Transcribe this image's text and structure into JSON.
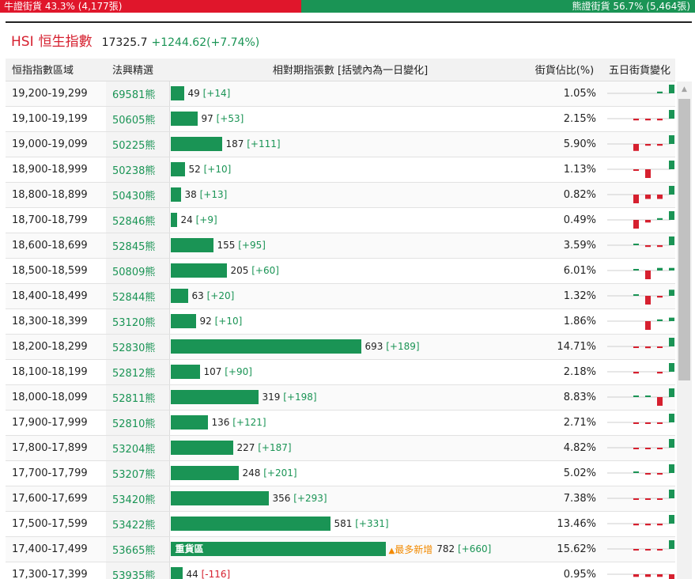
{
  "ratio": {
    "bull_label": "牛證街貨 43.3% (4,177張)",
    "bear_label": "熊證街貨 56.7% (5,464張)",
    "bull_fraction": 0.433,
    "bull_color": "#e0162b",
    "bear_color": "#1a9455"
  },
  "index": {
    "code": "HSI",
    "name": "恒生指數",
    "price": "17325.7",
    "change": "+1244.62(+7.74%)"
  },
  "table": {
    "headers": {
      "range": "恒指指數區域",
      "warrant": "法興精選",
      "bars": "相對期指張數 [括號內為一日變化]",
      "pct": "街貨佔比(%)",
      "spark": "五日街貨變化"
    },
    "max_contracts": 782,
    "rows": [
      {
        "range": "19,200-19,299",
        "warrant": "69581熊",
        "contracts": 49,
        "change": "[+14]",
        "pct": "1.05%",
        "five_day": [
          0,
          0,
          0,
          0.2,
          1
        ]
      },
      {
        "range": "19,100-19,199",
        "warrant": "50605熊",
        "contracts": 97,
        "change": "[+53]",
        "pct": "2.15%",
        "five_day": [
          0,
          -0.2,
          -0.2,
          -0.2,
          1
        ]
      },
      {
        "range": "19,000-19,099",
        "warrant": "50225熊",
        "contracts": 187,
        "change": "[+111]",
        "pct": "5.90%",
        "five_day": [
          0,
          -0.8,
          -0.2,
          -0.2,
          1
        ]
      },
      {
        "range": "18,900-18,999",
        "warrant": "50238熊",
        "contracts": 52,
        "change": "[+10]",
        "pct": "1.13%",
        "five_day": [
          0,
          -0.1,
          -1,
          0,
          1
        ]
      },
      {
        "range": "18,800-18,899",
        "warrant": "50430熊",
        "contracts": 38,
        "change": "[+13]",
        "pct": "0.82%",
        "five_day": [
          0,
          -1,
          -0.5,
          -0.5,
          1
        ]
      },
      {
        "range": "18,700-18,799",
        "warrant": "52846熊",
        "contracts": 24,
        "change": "[+9]",
        "pct": "0.49%",
        "five_day": [
          0,
          -1,
          -0.3,
          0.2,
          1
        ]
      },
      {
        "range": "18,600-18,699",
        "warrant": "52845熊",
        "contracts": 155,
        "change": "[+95]",
        "pct": "3.59%",
        "five_day": [
          0,
          0.1,
          -0.2,
          -0.2,
          1
        ]
      },
      {
        "range": "18,500-18,599",
        "warrant": "50809熊",
        "contracts": 205,
        "change": "[+60]",
        "pct": "6.01%",
        "five_day": [
          0,
          0.1,
          -1,
          0.3,
          0.3
        ]
      },
      {
        "range": "18,400-18,499",
        "warrant": "52844熊",
        "contracts": 63,
        "change": "[+20]",
        "pct": "1.32%",
        "five_day": [
          0,
          0.1,
          -1,
          -0.2,
          0.7
        ]
      },
      {
        "range": "18,300-18,399",
        "warrant": "53120熊",
        "contracts": 92,
        "change": "[+10]",
        "pct": "1.86%",
        "five_day": [
          0,
          0,
          -1,
          0.2,
          0.4
        ]
      },
      {
        "range": "18,200-18,299",
        "warrant": "52830熊",
        "contracts": 693,
        "change": "[+189]",
        "pct": "14.71%",
        "five_day": [
          0,
          -0.1,
          -0.2,
          -0.1,
          1
        ]
      },
      {
        "range": "18,100-18,199",
        "warrant": "52812熊",
        "contracts": 107,
        "change": "[+90]",
        "pct": "2.18%",
        "five_day": [
          0,
          -0.2,
          0,
          -0.2,
          1
        ]
      },
      {
        "range": "18,000-18,099",
        "warrant": "52811熊",
        "contracts": 319,
        "change": "[+198]",
        "pct": "8.83%",
        "five_day": [
          0,
          0.1,
          0.1,
          -1,
          1
        ]
      },
      {
        "range": "17,900-17,999",
        "warrant": "52810熊",
        "contracts": 136,
        "change": "[+121]",
        "pct": "2.71%",
        "five_day": [
          0,
          -0.1,
          -0.1,
          -0.1,
          1
        ]
      },
      {
        "range": "17,800-17,899",
        "warrant": "53204熊",
        "contracts": 227,
        "change": "[+187]",
        "pct": "4.82%",
        "five_day": [
          0,
          -0.1,
          -0.1,
          -0.1,
          1
        ]
      },
      {
        "range": "17,700-17,799",
        "warrant": "53207熊",
        "contracts": 248,
        "change": "[+201]",
        "pct": "5.02%",
        "five_day": [
          0,
          0.1,
          -0.1,
          -0.1,
          1
        ]
      },
      {
        "range": "17,600-17,699",
        "warrant": "53420熊",
        "contracts": 356,
        "change": "[+293]",
        "pct": "7.38%",
        "five_day": [
          0,
          -0.1,
          -0.1,
          -0.1,
          1
        ]
      },
      {
        "range": "17,500-17,599",
        "warrant": "53422熊",
        "contracts": 581,
        "change": "[+331]",
        "pct": "13.46%",
        "five_day": [
          0,
          -0.2,
          -0.2,
          -0.2,
          1
        ]
      },
      {
        "range": "17,400-17,499",
        "warrant": "53665熊",
        "contracts": 782,
        "change": "[+660]",
        "pct": "15.62%",
        "five_day": [
          0,
          -0.1,
          -0.1,
          -0.1,
          1
        ],
        "zone_label": "重貨區",
        "hot_label": "最多新增"
      },
      {
        "range": "17,300-17,399",
        "warrant": "53935熊",
        "contracts": 44,
        "change": "[-116]",
        "pct": "0.95%",
        "five_day": [
          0,
          -0.3,
          -0.3,
          -0.3,
          -1
        ]
      }
    ]
  },
  "colors": {
    "bull_red": "#d6202f",
    "bear_green": "#1a9455",
    "hot_orange": "#f28a00"
  },
  "icons": {
    "scroll_up": "triangle-up-icon",
    "hot_marker": "triangle-up-icon"
  }
}
